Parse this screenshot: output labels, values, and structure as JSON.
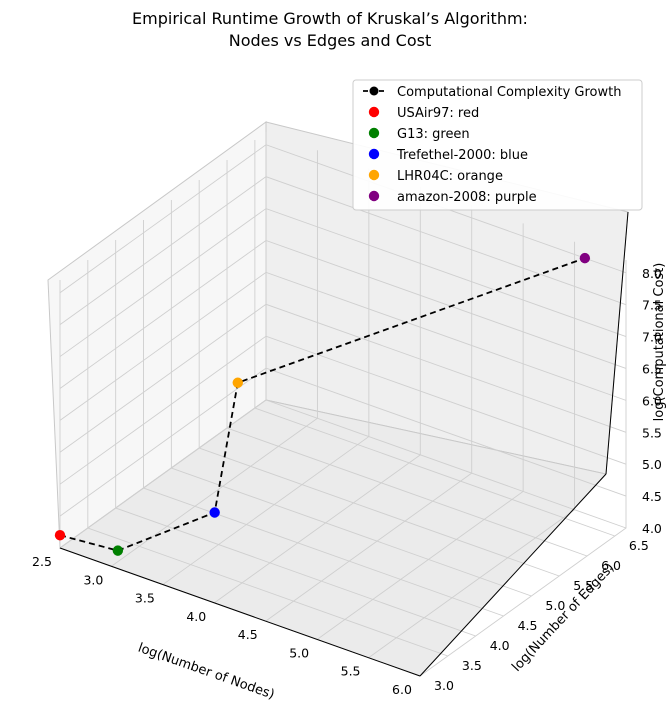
{
  "chart_data": {
    "type": "scatter",
    "projection": "3d",
    "title": "Empirical Runtime Growth of Kruskal’s Algorithm:",
    "subtitle": "Nodes vs Edges and Cost",
    "xlabel": "log(Number of Nodes)",
    "ylabel": "log(Number of Edges)",
    "zlabel": "log(Computational Cost)",
    "xlim": [
      2.5,
      6.0
    ],
    "ylim": [
      3.0,
      6.7
    ],
    "zlim": [
      4.0,
      8.2
    ],
    "x_ticks": [
      "2.5",
      "3.0",
      "3.5",
      "4.0",
      "4.5",
      "5.0",
      "5.5",
      "6.0"
    ],
    "y_ticks": [
      "3.0",
      "3.5",
      "4.0",
      "4.5",
      "5.0",
      "5.5",
      "6.0",
      "6.5"
    ],
    "z_ticks": [
      "4.0",
      "4.5",
      "5.0",
      "5.5",
      "6.0",
      "6.5",
      "7.0",
      "7.5",
      "8.0"
    ],
    "grid": true,
    "legend_position": "top-right",
    "line_series": {
      "name": "Computational Complexity Growth",
      "color": "#000000",
      "style": "dashed"
    },
    "points": [
      {
        "label": "USAir97: red",
        "x": 2.5,
        "y": 3.0,
        "z": 4.2,
        "color": "#ff0000"
      },
      {
        "label": "G13: green",
        "x": 2.9,
        "y": 3.3,
        "z": 4.0,
        "color": "#008000"
      },
      {
        "label": "Trefethel-2000: blue",
        "x": 3.3,
        "y": 4.3,
        "z": 4.2,
        "color": "#0000ff"
      },
      {
        "label": "LHR04C: orange",
        "x": 3.2,
        "y": 4.9,
        "z": 5.8,
        "color": "#ffa500"
      },
      {
        "label": "amazon-2008: purple",
        "x": 5.6,
        "y": 6.7,
        "z": 8.0,
        "color": "#800080"
      }
    ]
  }
}
